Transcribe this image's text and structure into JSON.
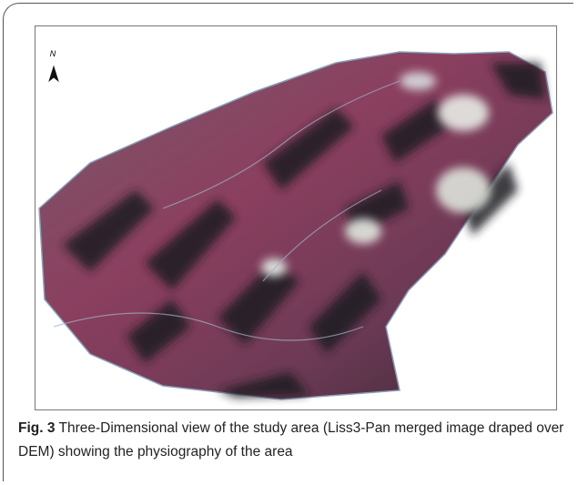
{
  "figure": {
    "north_label": "N",
    "caption_label": "Fig. 3",
    "caption_text": "Three-Dimensional view of the study area (Liss3-Pan merged image draped over DEM) showing the physiography of the area"
  }
}
